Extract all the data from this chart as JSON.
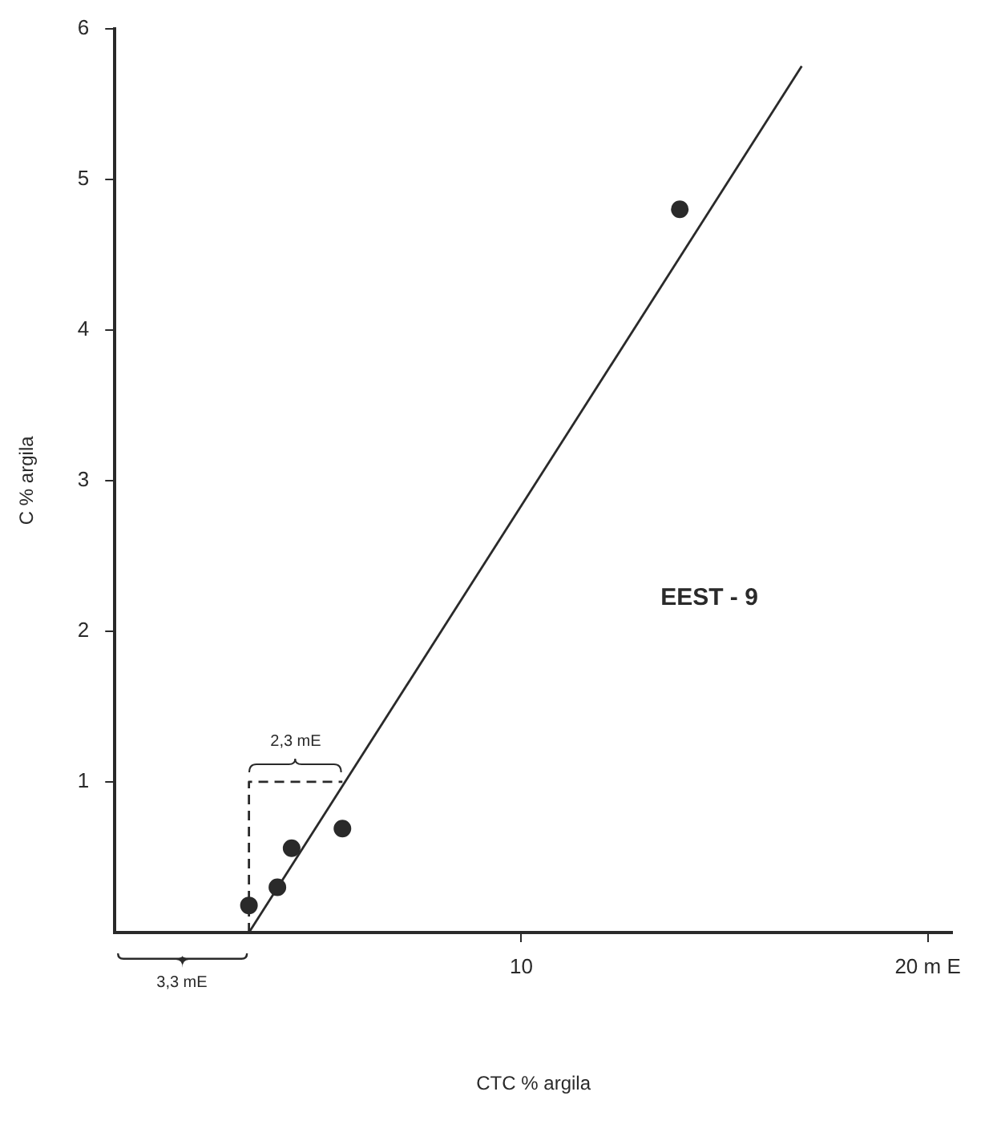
{
  "chart_data": {
    "type": "scatter",
    "xlabel": "CTC % argila",
    "ylabel": "C % argila",
    "xlim": [
      0,
      20.6
    ],
    "ylim": [
      0,
      6
    ],
    "xticks": [
      10,
      {
        "value": 20,
        "label": "20 m E"
      }
    ],
    "yticks": [
      1,
      2,
      3,
      4,
      5,
      6
    ],
    "grid": false,
    "legend": false,
    "marker": "circle",
    "series": [
      {
        "type": "scatter",
        "color": "#2a2a2a",
        "x": [
          3.3,
          4.0,
          4.35,
          5.6,
          13.9
        ],
        "values": [
          0.18,
          0.3,
          0.56,
          0.69,
          4.8
        ]
      },
      {
        "type": "line",
        "color": "#2a2a2a",
        "marker": "none",
        "line_style": "solid",
        "x": [
          3.3,
          16.9
        ],
        "values": [
          0,
          5.75
        ]
      },
      {
        "type": "line",
        "color": "#2a2a2a",
        "marker": "none",
        "line_style": "dashed",
        "x": [
          3.3,
          3.3,
          5.6
        ],
        "values": [
          0,
          1,
          1
        ]
      }
    ],
    "annotations": [
      {
        "text": "2,3 mE",
        "x": 4.45,
        "y": 1
      },
      "3,3 mE",
      "EEST - 9"
    ]
  }
}
